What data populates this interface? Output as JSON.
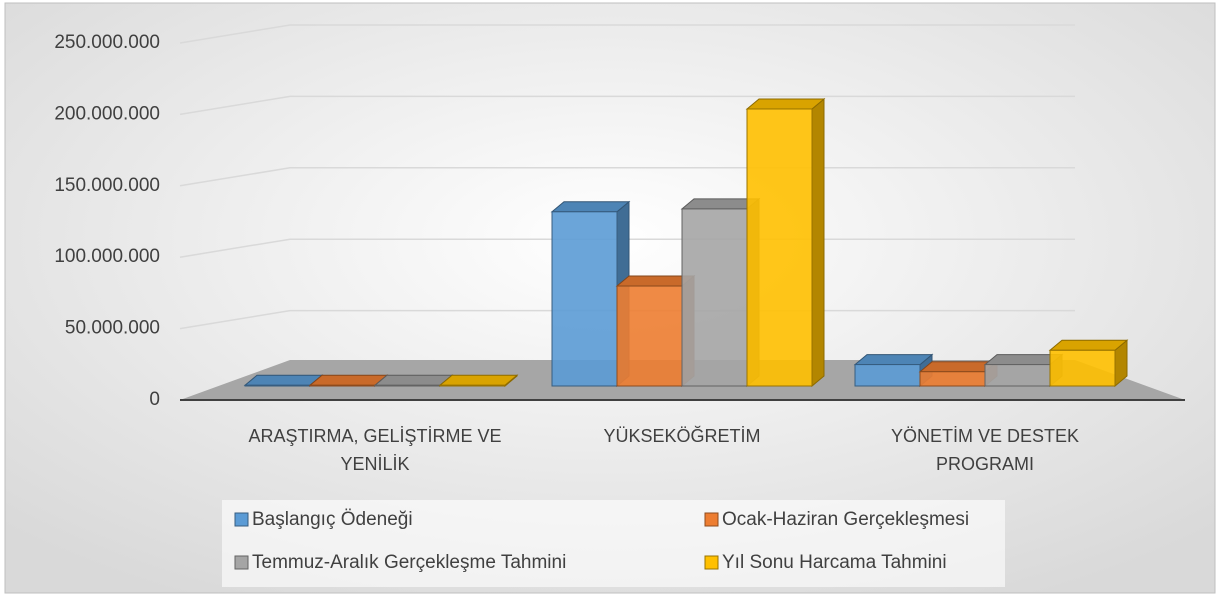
{
  "chart_data": {
    "type": "bar3d",
    "categories": [
      "ARAŞTIRMA, GELİŞTİRME VE YENİLİK",
      "YÜKSEKÖĞRETİM",
      "YÖNETİM VE DESTEK PROGRAMI"
    ],
    "series": [
      {
        "name": "Başlangıç Ödeneği",
        "color": "#5b9bd5",
        "values": [
          500000,
          122000000,
          15000000
        ]
      },
      {
        "name": "Ocak-Haziran Gerçekleşmesi",
        "color": "#ed7d31",
        "values": [
          500000,
          70000000,
          10000000
        ]
      },
      {
        "name": "Temmuz-Aralık Gerçekleşme Tahmini",
        "color": "#a5a5a5",
        "values": [
          500000,
          124000000,
          15000000
        ]
      },
      {
        "name": "Yıl Sonu Harcama Tahmini",
        "color": "#ffc000",
        "values": [
          500000,
          194000000,
          25000000
        ]
      }
    ],
    "ylim": [
      0,
      250000000
    ],
    "yticks": [
      0,
      {
        "value": 50000000,
        "label": "50.000.000"
      },
      {
        "value": 100000000,
        "label": "100.000.000"
      },
      {
        "value": 150000000,
        "label": "150.000.000"
      },
      {
        "value": 200000000,
        "label": "200.000.000"
      },
      {
        "value": 250000000,
        "label": "250.000.000"
      }
    ],
    "grid": true
  }
}
